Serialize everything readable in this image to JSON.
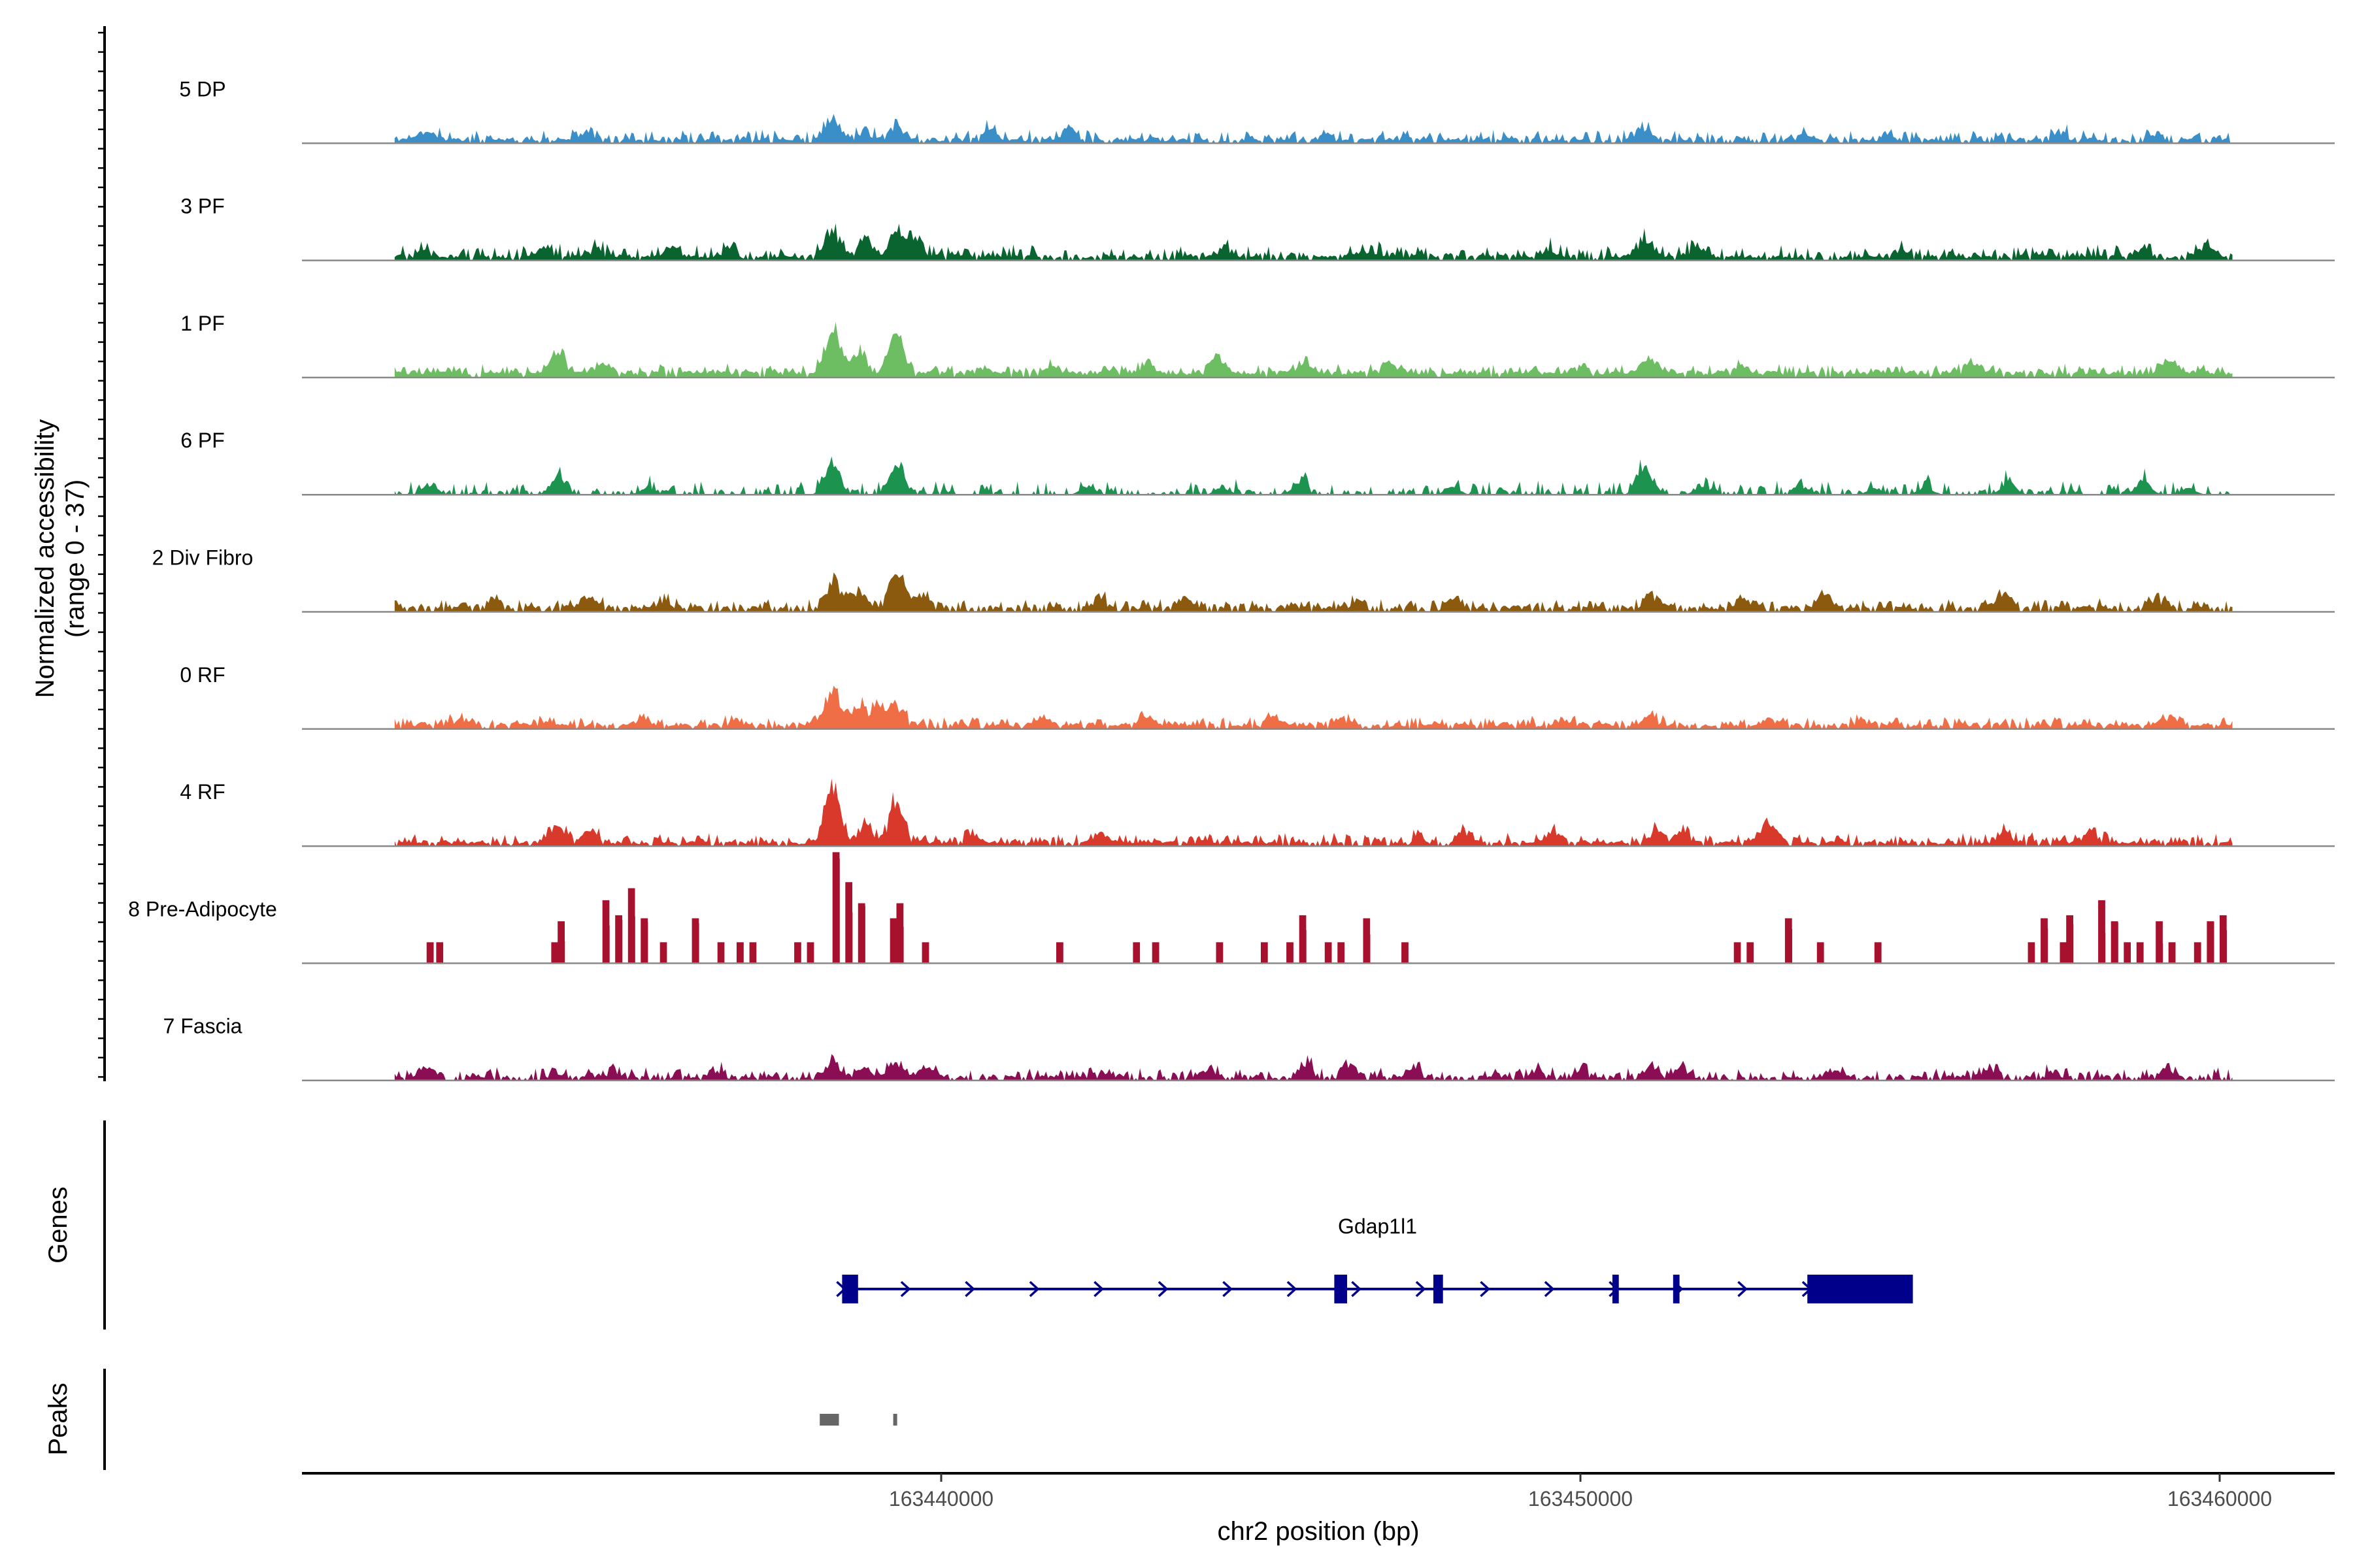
{
  "chart_data": {
    "type": "coverage",
    "title": "",
    "ylabel_line1": "Normalized accessibility",
    "ylabel_line2": "(range 0 - 37)",
    "ylim": [
      0,
      37
    ],
    "xlabel": "chr2 position (bp)",
    "xlim": [
      163430000,
      163461800
    ],
    "data_start": 163431450,
    "data_end": 163460200,
    "x_ticks": [
      163440000,
      163450000,
      163460000
    ],
    "x_tick_labels": [
      "163440000",
      "163450000",
      "163460000"
    ],
    "tracks": [
      {
        "name": "5 DP",
        "color": "#3A8FC8",
        "base": 1.6,
        "noise": 1.8,
        "fraction": 0.85,
        "peaks": [
          [
            163431950,
            3.8
          ],
          [
            163434500,
            2.2
          ],
          [
            163438300,
            6.8
          ],
          [
            163438800,
            3.0
          ],
          [
            163439300,
            4.8
          ],
          [
            163440800,
            4.2
          ],
          [
            163442000,
            4.4
          ],
          [
            163446000,
            2.5
          ],
          [
            163451000,
            4.0
          ],
          [
            163453500,
            2.0
          ],
          [
            163457500,
            3.2
          ],
          [
            163459000,
            2.5
          ]
        ]
      },
      {
        "name": "3 PF",
        "color": "#0A6430",
        "base": 1.8,
        "noise": 2.0,
        "fraction": 0.85,
        "peaks": [
          [
            163431900,
            2.5
          ],
          [
            163433800,
            3.5
          ],
          [
            163434600,
            3.0
          ],
          [
            163435800,
            3.8
          ],
          [
            163436700,
            4.0
          ],
          [
            163438300,
            9.5
          ],
          [
            163438800,
            5.5
          ],
          [
            163439300,
            8.0
          ],
          [
            163439600,
            7.5
          ],
          [
            163444500,
            3.2
          ],
          [
            163446700,
            3.0
          ],
          [
            163449500,
            3.5
          ],
          [
            163451000,
            6.5
          ],
          [
            163451800,
            3.5
          ],
          [
            163455000,
            2.5
          ],
          [
            163458800,
            4.0
          ],
          [
            163459800,
            4.5
          ]
        ]
      },
      {
        "name": "1 PF",
        "color": "#6DBD63",
        "base": 2.2,
        "noise": 1.5,
        "fraction": 0.96,
        "peaks": [
          [
            163434000,
            7.5
          ],
          [
            163434700,
            3.5
          ],
          [
            163438300,
            15.0
          ],
          [
            163438700,
            7.0
          ],
          [
            163439300,
            14.5
          ],
          [
            163441700,
            2.5
          ],
          [
            163443200,
            3.0
          ],
          [
            163444300,
            5.5
          ],
          [
            163445700,
            3.5
          ],
          [
            163447000,
            3.5
          ],
          [
            163450000,
            2.5
          ],
          [
            163451100,
            4.5
          ],
          [
            163452500,
            2.2
          ],
          [
            163456100,
            3.5
          ],
          [
            163459200,
            4.5
          ]
        ]
      },
      {
        "name": "6 PF",
        "color": "#1C9450",
        "base": 1.5,
        "noise": 2.0,
        "fraction": 0.5,
        "peaks": [
          [
            163432000,
            3.5
          ],
          [
            163434000,
            6.5
          ],
          [
            163435400,
            2.5
          ],
          [
            163438300,
            12.0
          ],
          [
            163439300,
            11.0
          ],
          [
            163442300,
            3.0
          ],
          [
            163444400,
            2.5
          ],
          [
            163445600,
            4.0
          ],
          [
            163448000,
            2.5
          ],
          [
            163451000,
            9.0
          ],
          [
            163451900,
            2.8
          ],
          [
            163453500,
            2.5
          ],
          [
            163454600,
            2.5
          ],
          [
            163455400,
            2.6
          ],
          [
            163456700,
            4.5
          ],
          [
            163458800,
            5.0
          ],
          [
            163459500,
            2.4
          ]
        ]
      },
      {
        "name": "2 Div Fibro",
        "color": "#8B5A0E",
        "base": 2.0,
        "noise": 1.5,
        "fraction": 0.8,
        "peaks": [
          [
            163433000,
            2.5
          ],
          [
            163434500,
            4.5
          ],
          [
            163435700,
            3.0
          ],
          [
            163438300,
            9.5
          ],
          [
            163438700,
            6.0
          ],
          [
            163439300,
            14.5
          ],
          [
            163439700,
            5.0
          ],
          [
            163442500,
            3.0
          ],
          [
            163443800,
            3.5
          ],
          [
            163446500,
            3.0
          ],
          [
            163448000,
            3.0
          ],
          [
            163451100,
            5.5
          ],
          [
            163452600,
            3.5
          ],
          [
            163453800,
            5.5
          ],
          [
            163456600,
            6.0
          ],
          [
            163459000,
            3.5
          ]
        ]
      },
      {
        "name": "0 RF",
        "color": "#EF6E45",
        "base": 1.8,
        "noise": 1.5,
        "fraction": 0.85,
        "peaks": [
          [
            163432500,
            2.5
          ],
          [
            163433800,
            2.0
          ],
          [
            163435300,
            3.0
          ],
          [
            163436800,
            2.5
          ],
          [
            163438300,
            13.0
          ],
          [
            163438700,
            6.5
          ],
          [
            163439000,
            6.0
          ],
          [
            163439300,
            7.5
          ],
          [
            163441600,
            2.5
          ],
          [
            163443200,
            2.5
          ],
          [
            163445200,
            3.5
          ],
          [
            163446300,
            2.5
          ],
          [
            163449800,
            2.5
          ],
          [
            163451100,
            3.5
          ],
          [
            163453000,
            2.5
          ],
          [
            163454400,
            2.5
          ],
          [
            163459200,
            3.0
          ]
        ]
      },
      {
        "name": "4 RF",
        "color": "#D8392A",
        "base": 1.6,
        "noise": 1.8,
        "fraction": 0.88,
        "peaks": [
          [
            163434000,
            6.5
          ],
          [
            163434500,
            4.5
          ],
          [
            163438300,
            20.0
          ],
          [
            163438800,
            6.5
          ],
          [
            163439300,
            14.0
          ],
          [
            163440500,
            2.5
          ],
          [
            163442500,
            3.5
          ],
          [
            163447500,
            2.2
          ],
          [
            163448200,
            4.5
          ],
          [
            163449600,
            3.5
          ],
          [
            163451200,
            4.5
          ],
          [
            163451600,
            3.8
          ],
          [
            163452800,
            2.5
          ],
          [
            163453000,
            5.5
          ],
          [
            163456600,
            4.0
          ],
          [
            163458000,
            4.0
          ]
        ]
      },
      {
        "name": "8 Pre-Adipocyte",
        "color": "#A8112D",
        "base": 6.0,
        "noise": 0.0,
        "fraction": 1.0,
        "spiky": true,
        "blocks": [
          [
            163431950,
            7.0
          ],
          [
            163432100,
            7.0
          ],
          [
            163433900,
            7.0
          ],
          [
            163434000,
            14.0
          ],
          [
            163434700,
            21.0
          ],
          [
            163434900,
            16.0
          ],
          [
            163435100,
            25.0
          ],
          [
            163435300,
            15.0
          ],
          [
            163435600,
            7.0
          ],
          [
            163436100,
            15.0
          ],
          [
            163436500,
            7.0
          ],
          [
            163436800,
            7.0
          ],
          [
            163437000,
            7.0
          ],
          [
            163437700,
            7.0
          ],
          [
            163437900,
            7.0
          ],
          [
            163438300,
            37.0
          ],
          [
            163438500,
            27.0
          ],
          [
            163438700,
            20.0
          ],
          [
            163439200,
            15.0
          ],
          [
            163439300,
            20.0
          ],
          [
            163439700,
            7.0
          ],
          [
            163441800,
            7.0
          ],
          [
            163443000,
            7.0
          ],
          [
            163443300,
            7.0
          ],
          [
            163444300,
            7.0
          ],
          [
            163445000,
            7.0
          ],
          [
            163445400,
            7.0
          ],
          [
            163445600,
            16.0
          ],
          [
            163446000,
            7.0
          ],
          [
            163446200,
            7.0
          ],
          [
            163446600,
            15.0
          ],
          [
            163447200,
            7.0
          ],
          [
            163452400,
            7.0
          ],
          [
            163452600,
            7.0
          ],
          [
            163453200,
            15.0
          ],
          [
            163453700,
            7.0
          ],
          [
            163454600,
            7.0
          ],
          [
            163457000,
            7.0
          ],
          [
            163457200,
            15.0
          ],
          [
            163457500,
            7.0
          ],
          [
            163457600,
            16.0
          ],
          [
            163458100,
            21.0
          ],
          [
            163458300,
            14.0
          ],
          [
            163458500,
            7.0
          ],
          [
            163458700,
            7.0
          ],
          [
            163459000,
            14.0
          ],
          [
            163459200,
            7.0
          ],
          [
            163459600,
            7.0
          ],
          [
            163459800,
            14.0
          ],
          [
            163460000,
            16.0
          ]
        ]
      },
      {
        "name": "7 Fascia",
        "color": "#8B0D54",
        "base": 1.5,
        "noise": 1.8,
        "fraction": 0.75,
        "peaks": [
          [
            163432000,
            3.5
          ],
          [
            163434000,
            2.5
          ],
          [
            163434900,
            2.5
          ],
          [
            163436500,
            2.5
          ],
          [
            163438300,
            6.5
          ],
          [
            163438800,
            4.0
          ],
          [
            163439300,
            6.0
          ],
          [
            163439800,
            3.5
          ],
          [
            163442600,
            2.5
          ],
          [
            163444200,
            3.0
          ],
          [
            163445700,
            4.5
          ],
          [
            163446400,
            4.0
          ],
          [
            163447400,
            3.0
          ],
          [
            163449300,
            2.5
          ],
          [
            163450000,
            2.5
          ],
          [
            163451100,
            4.0
          ],
          [
            163451600,
            3.5
          ],
          [
            163454000,
            2.5
          ],
          [
            163456400,
            2.5
          ],
          [
            163457400,
            2.5
          ],
          [
            163459200,
            3.0
          ]
        ]
      }
    ],
    "genes_label": "Genes",
    "gene": {
      "name": "Gdap1l1",
      "color": "#00008B",
      "start": 163438450,
      "end": 163455200,
      "strand": "+",
      "exons": [
        [
          163438450,
          163438700
        ],
        [
          163446150,
          163446350
        ],
        [
          163447700,
          163447850
        ],
        [
          163450500,
          163450600
        ],
        [
          163451450,
          163451550
        ],
        [
          163453550,
          163455200
        ]
      ]
    },
    "peaks_label": "Peaks",
    "peaks": [
      {
        "start": 163438100,
        "end": 163438400
      },
      {
        "start": 163439250,
        "end": 163439300
      }
    ]
  }
}
